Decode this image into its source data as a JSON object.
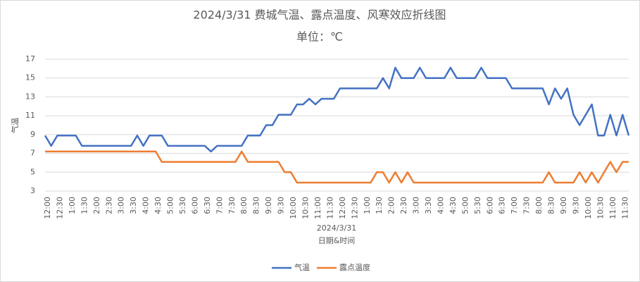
{
  "chart_data": {
    "type": "line",
    "title": "2024/3/31 费城气温、露点温度、风寒效应折线图",
    "subtitle": "单位：℃",
    "y_label": "气温",
    "x_group_label": "2024/3/31",
    "x_label": "日期&时间",
    "categories": [
      "12:00",
      null,
      "12:30",
      null,
      "1:00",
      null,
      "1:30",
      null,
      "2:00",
      null,
      "2:30",
      null,
      "3:00",
      null,
      "3:30",
      null,
      "4:00",
      null,
      "4:30",
      null,
      "5:00",
      null,
      "5:30",
      null,
      "6:00",
      null,
      "6:30",
      null,
      "7:00",
      null,
      "7:30",
      null,
      "8:00",
      null,
      "8:30",
      null,
      "9:00",
      null,
      "9:30",
      null,
      "10:00",
      null,
      "10:30",
      null,
      "11:00",
      null,
      "11:30",
      null,
      "12:00",
      null,
      "12:30",
      null,
      "1:00",
      null,
      "1:30",
      null,
      "2:00",
      null,
      "2:30",
      null,
      "3:00",
      null,
      "3:30",
      null,
      "4:00",
      null,
      "4:30",
      null,
      "5:00",
      null,
      "5:30",
      null,
      "6:00",
      null,
      "6:30",
      null,
      "7:00",
      null,
      "7:30",
      null,
      "8:00",
      null,
      "8:30",
      null,
      "9:00",
      null,
      "9:30",
      null,
      "10:00",
      null,
      "10:30",
      null,
      "11:00",
      null,
      "11:30",
      null
    ],
    "series": [
      {
        "name": "气温",
        "color": "#4472c4",
        "values": [
          8.9,
          7.8,
          8.9,
          8.9,
          8.9,
          8.9,
          7.8,
          7.8,
          7.8,
          7.8,
          7.8,
          7.8,
          7.8,
          7.8,
          7.8,
          8.9,
          7.8,
          8.9,
          8.9,
          8.9,
          7.8,
          7.8,
          7.8,
          7.8,
          7.8,
          7.8,
          7.8,
          7.2,
          7.8,
          7.8,
          7.8,
          7.8,
          7.8,
          8.9,
          8.9,
          8.9,
          10,
          10,
          11.1,
          11.1,
          11.1,
          12.2,
          12.2,
          12.8,
          12.2,
          12.8,
          12.8,
          12.8,
          13.9,
          13.9,
          13.9,
          13.9,
          13.9,
          13.9,
          13.9,
          15,
          13.9,
          16.1,
          15,
          15,
          15,
          16.1,
          15,
          15,
          15,
          15,
          16.1,
          15,
          15,
          15,
          15,
          16.1,
          15,
          15,
          15,
          15,
          13.9,
          13.9,
          13.9,
          13.9,
          13.9,
          13.9,
          12.2,
          13.9,
          12.8,
          13.9,
          11.1,
          10,
          11.1,
          12.2,
          8.9,
          8.9,
          11.1,
          8.9,
          11.1,
          8.9
        ]
      },
      {
        "name": "露点温度",
        "color": "#ed7d31",
        "values": [
          7.2,
          7.2,
          7.2,
          7.2,
          7.2,
          7.2,
          7.2,
          7.2,
          7.2,
          7.2,
          7.2,
          7.2,
          7.2,
          7.2,
          7.2,
          7.2,
          7.2,
          7.2,
          7.2,
          6.1,
          6.1,
          6.1,
          6.1,
          6.1,
          6.1,
          6.1,
          6.1,
          6.1,
          6.1,
          6.1,
          6.1,
          6.1,
          7.2,
          6.1,
          6.1,
          6.1,
          6.1,
          6.1,
          6.1,
          5,
          5,
          3.9,
          3.9,
          3.9,
          3.9,
          3.9,
          3.9,
          3.9,
          3.9,
          3.9,
          3.9,
          3.9,
          3.9,
          3.9,
          5,
          5,
          3.9,
          5,
          3.9,
          5,
          3.9,
          3.9,
          3.9,
          3.9,
          3.9,
          3.9,
          3.9,
          3.9,
          3.9,
          3.9,
          3.9,
          3.9,
          3.9,
          3.9,
          3.9,
          3.9,
          3.9,
          3.9,
          3.9,
          3.9,
          3.9,
          3.9,
          5,
          3.9,
          3.9,
          3.9,
          3.9,
          5,
          3.9,
          5,
          3.9,
          5,
          6.1,
          5,
          6.1,
          6.1
        ]
      }
    ],
    "ylim": [
      3,
      17
    ],
    "yticks": [
      3,
      5,
      7,
      9,
      11,
      13,
      15,
      17
    ],
    "grid": true
  }
}
